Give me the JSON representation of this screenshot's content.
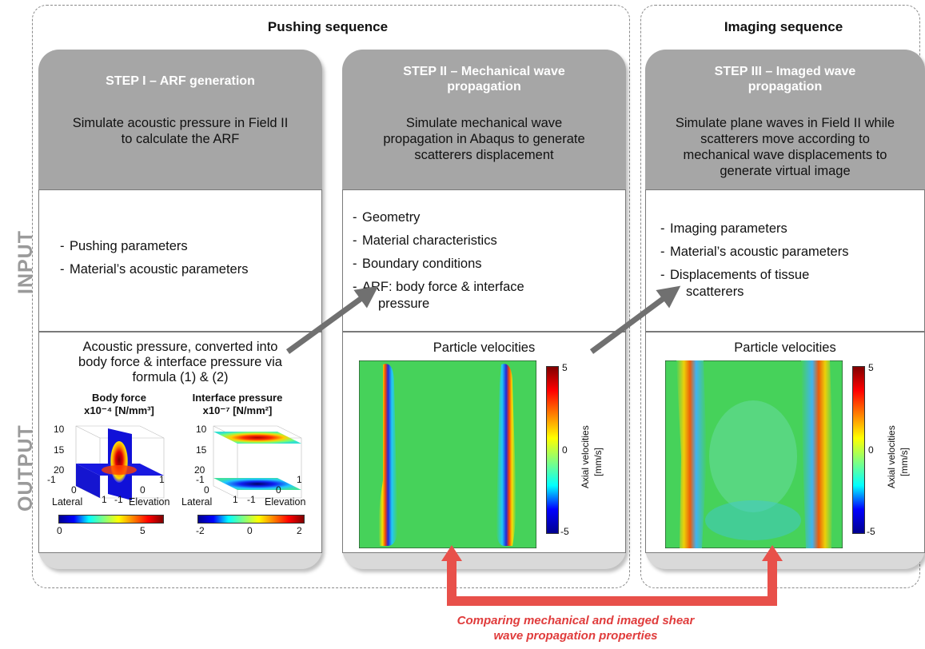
{
  "sequences": {
    "pushing": "Pushing sequence",
    "imaging": "Imaging sequence"
  },
  "side_labels": {
    "input": "INPUT",
    "output": "OUTPUT"
  },
  "steps": [
    {
      "title_line1": "STEP I – ARF generation",
      "title_line2": "",
      "desc_line1": "Simulate acoustic pressure in Field II",
      "desc_line2": "to calculate the ARF",
      "desc_line3": "",
      "desc_line4": "",
      "inputs": [
        "Pushing parameters",
        "Material’s acoustic parameters"
      ]
    },
    {
      "title_line1": "STEP II – Mechanical wave",
      "title_line2": "propagation",
      "desc_line1": "Simulate mechanical wave",
      "desc_line2": "propagation in Abaqus to generate",
      "desc_line3": "scatterers displacement",
      "desc_line4": "",
      "inputs": [
        "Geometry",
        "Material characteristics",
        "Boundary conditions",
        "ARF: body force & interface",
        "pressure"
      ]
    },
    {
      "title_line1": "STEP III – Imaged wave",
      "title_line2": "propagation",
      "desc_line1": "Simulate plane waves in Field II while",
      "desc_line2": "scatterers move according to",
      "desc_line3": "mechanical wave displacements to",
      "desc_line4": "generate virtual image",
      "inputs": [
        "Imaging parameters",
        "Material’s acoustic parameters",
        "Displacements of tissue",
        "scatterers"
      ]
    }
  ],
  "output1": {
    "line1": "Acoustic pressure, converted into",
    "line2": "body force & interface pressure via",
    "line3": "formula (1) & (2)",
    "bf_title": "Body force",
    "bf_unit": "x10⁻⁴ [N/mm³]",
    "ip_title": "Interface pressure",
    "ip_unit": "x10⁻⁷ [N/mm²]",
    "z_ticks": [
      "10",
      "15",
      "20"
    ],
    "ip_z_ticks": [
      "10",
      "15",
      "20"
    ],
    "lat_ticks": [
      "-1",
      "0",
      "1"
    ],
    "elev_ticks": [
      "-1",
      "0",
      "1"
    ],
    "lateral": "Lateral",
    "elevation": "Elevation",
    "bf_cbar_ticks": [
      "0",
      "5"
    ],
    "ip_cbar_ticks": [
      "-2",
      "0",
      "2"
    ]
  },
  "output2": {
    "title": "Particle velocities",
    "cbar_label": "Axial velocities",
    "cbar_unit": "[mm/s]",
    "cbar_ticks": [
      "5",
      "0",
      "-5"
    ]
  },
  "output3": {
    "title": "Particle velocities",
    "cbar_label": "Axial velocities",
    "cbar_unit": "[mm/s]",
    "cbar_ticks": [
      "5",
      "0",
      "-5"
    ]
  },
  "note": {
    "line1": "Comparing mechanical and imaged shear",
    "line2": "wave propagation properties"
  },
  "colors": {
    "header_gray": "#a6a6a6",
    "column_gray": "#d9d9d9",
    "arrow_gray": "#707070",
    "note_red": "#e03c3c",
    "field_green": "#46d25a"
  }
}
